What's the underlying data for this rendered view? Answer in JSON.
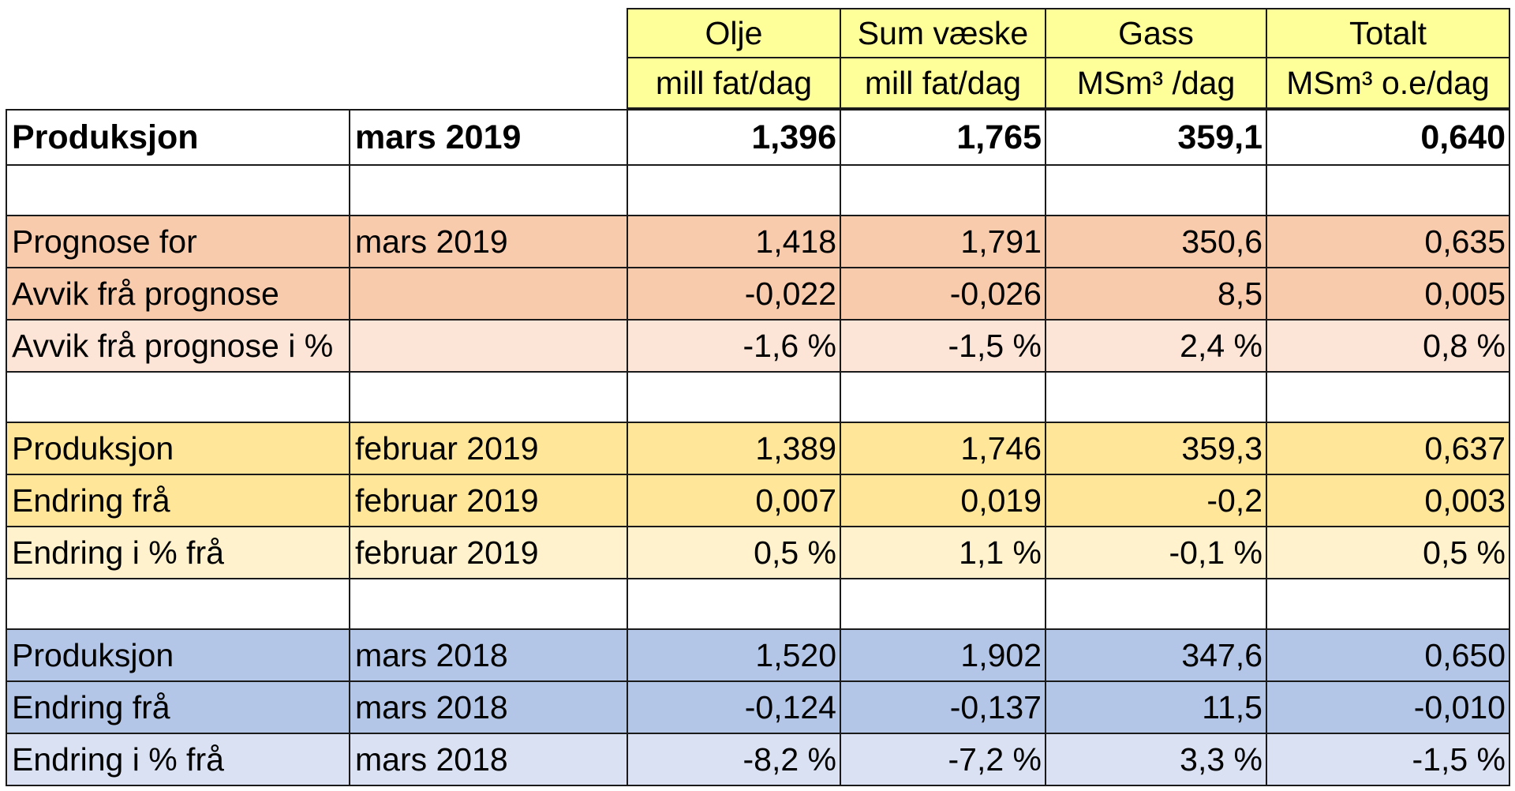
{
  "header": {
    "col_titles": [
      "Olje",
      "Sum væske",
      "Gass",
      "Totalt"
    ],
    "col_units": [
      "mill fat/dag",
      "mill fat/dag",
      "MSm³ /dag",
      "MSm³ o.e/dag"
    ]
  },
  "main_row": {
    "label": "Produksjon",
    "period": "mars 2019",
    "values": [
      "1,396",
      "1,765",
      "359,1",
      "0,640"
    ]
  },
  "forecast_rows": [
    {
      "label": "Prognose for",
      "period": "mars 2019",
      "values": [
        "1,418",
        "1,791",
        "350,6",
        "0,635"
      ]
    },
    {
      "label": "Avvik frå prognose",
      "period": "",
      "values": [
        "-0,022",
        "-0,026",
        "8,5",
        "0,005"
      ]
    },
    {
      "label": "Avvik frå prognose i %",
      "period": "",
      "values": [
        "-1,6 %",
        "-1,5 %",
        "2,4 %",
        "0,8 %"
      ]
    }
  ],
  "prev_month_rows": [
    {
      "label": "Produksjon",
      "period": "februar 2019",
      "values": [
        "1,389",
        "1,746",
        "359,3",
        "0,637"
      ]
    },
    {
      "label": "Endring frå",
      "period": "februar 2019",
      "values": [
        "0,007",
        "0,019",
        "-0,2",
        "0,003"
      ]
    },
    {
      "label": "Endring i % frå",
      "period": "februar 2019",
      "values": [
        "0,5 %",
        "1,1 %",
        "-0,1 %",
        "0,5 %"
      ]
    }
  ],
  "prev_year_rows": [
    {
      "label": "Produksjon",
      "period": "mars 2018",
      "values": [
        "1,520",
        "1,902",
        "347,6",
        "0,650"
      ]
    },
    {
      "label": "Endring frå",
      "period": "mars 2018",
      "values": [
        "-0,124",
        "-0,137",
        "11,5",
        "-0,010"
      ]
    },
    {
      "label": "Endring i % frå",
      "period": "mars 2018",
      "values": [
        "-8,2 %",
        "-7,2 %",
        "3,3 %",
        "-1,5 %"
      ]
    }
  ]
}
